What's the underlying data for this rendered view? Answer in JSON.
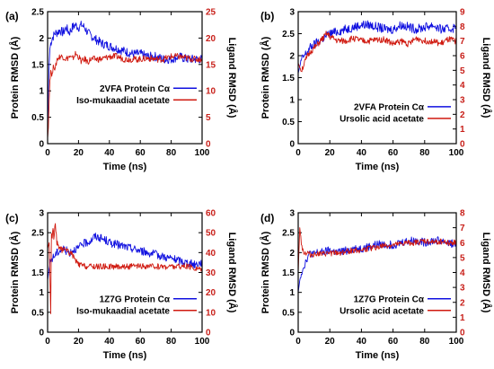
{
  "colors": {
    "protein": "#1010e0",
    "ligand": "#d01a10",
    "ligand_dark": "#8b2a10",
    "ligand_axis": "#c8201a"
  },
  "chart_data": [
    {
      "type": "line",
      "panel_label": "(a)",
      "xlabel": "Time (ns)",
      "ylabel": "Protein RMSD (Å)",
      "y2label": "Ligand RMSD (Å)",
      "xlim": [
        0,
        100
      ],
      "ylim": [
        0,
        2.5
      ],
      "y2lim": [
        0,
        25
      ],
      "xticks": [
        "0",
        "20",
        "40",
        "60",
        "80",
        "100"
      ],
      "yticks": [
        "0",
        "0.5",
        "1",
        "1.5",
        "2",
        "2.5"
      ],
      "y2ticks": [
        "0",
        "5",
        "10",
        "15",
        "20",
        "25"
      ],
      "legend_position": "center-right",
      "series": [
        {
          "name": "2VFA Protein Cα",
          "axis": "left",
          "color": "#1010e0",
          "x": [
            0,
            0.5,
            1,
            1.5,
            2,
            3,
            4,
            5,
            6,
            8,
            10,
            12,
            14,
            16,
            18,
            20,
            22,
            24,
            26,
            28,
            30,
            35,
            40,
            45,
            50,
            55,
            60,
            65,
            70,
            75,
            80,
            85,
            90,
            95,
            100
          ],
          "y": [
            0.1,
            1.0,
            1.5,
            1.8,
            1.9,
            2.0,
            2.05,
            2.1,
            2.1,
            2.15,
            2.1,
            2.2,
            2.1,
            2.2,
            2.25,
            2.2,
            2.25,
            2.2,
            2.1,
            2.05,
            2.0,
            1.9,
            1.85,
            1.8,
            1.75,
            1.7,
            1.7,
            1.65,
            1.65,
            1.6,
            1.6,
            1.65,
            1.6,
            1.6,
            1.6
          ]
        },
        {
          "name": "Iso-mukaadial acetate",
          "axis": "right",
          "color": "#d01a10",
          "x": [
            0,
            0.5,
            1,
            1.5,
            2,
            3,
            4,
            5,
            6,
            8,
            10,
            12,
            14,
            16,
            18,
            20,
            22,
            24,
            26,
            28,
            30,
            35,
            40,
            45,
            50,
            55,
            60,
            65,
            70,
            75,
            80,
            85,
            90,
            95,
            100
          ],
          "y": [
            1,
            3,
            8,
            12,
            14,
            13,
            15,
            14,
            16,
            16.5,
            16.5,
            16,
            16.5,
            16,
            17,
            16.5,
            15.5,
            16,
            15.5,
            16,
            16,
            16,
            16.5,
            16.5,
            16,
            16,
            16,
            16.2,
            16,
            16,
            16.5,
            16.5,
            16.2,
            16,
            16
          ]
        }
      ]
    },
    {
      "type": "line",
      "panel_label": "(b)",
      "xlabel": "Time (ns)",
      "ylabel": "Protein RMSD (Å)",
      "y2label": "Ligand RMSD (Å)",
      "xlim": [
        0,
        100
      ],
      "ylim": [
        0,
        3
      ],
      "y2lim": [
        0,
        9
      ],
      "xticks": [
        "0",
        "20",
        "40",
        "60",
        "80",
        "100"
      ],
      "yticks": [
        "0",
        "0.5",
        "1",
        "1.5",
        "2",
        "2.5",
        "3"
      ],
      "y2ticks": [
        "0",
        "1",
        "2",
        "3",
        "4",
        "5",
        "6",
        "7",
        "8",
        "9"
      ],
      "legend_position": "bottom-right",
      "series": [
        {
          "name": "2VFA Protein Cα",
          "axis": "left",
          "color": "#1010e0",
          "x": [
            0,
            1,
            2,
            4,
            6,
            8,
            10,
            12,
            14,
            16,
            18,
            20,
            25,
            30,
            35,
            40,
            45,
            50,
            55,
            60,
            65,
            70,
            75,
            80,
            85,
            90,
            95,
            100
          ],
          "y": [
            1.6,
            1.75,
            1.9,
            2.0,
            2.1,
            2.2,
            2.25,
            2.3,
            2.35,
            2.4,
            2.45,
            2.5,
            2.55,
            2.6,
            2.65,
            2.7,
            2.7,
            2.65,
            2.6,
            2.6,
            2.7,
            2.65,
            2.6,
            2.65,
            2.7,
            2.6,
            2.6,
            2.65
          ]
        },
        {
          "name": "Ursolic acid acetate",
          "axis": "right",
          "color": "#d01a10",
          "x": [
            0,
            1,
            2,
            4,
            6,
            8,
            10,
            12,
            14,
            16,
            18,
            20,
            25,
            30,
            35,
            40,
            45,
            50,
            55,
            60,
            65,
            70,
            75,
            80,
            85,
            90,
            95,
            100
          ],
          "y": [
            5.5,
            5.2,
            5.0,
            5.5,
            6.0,
            6.3,
            6.5,
            6.7,
            7.0,
            7.2,
            7.5,
            7.3,
            7.0,
            7.0,
            7.2,
            7.0,
            7.0,
            7.1,
            7.1,
            6.8,
            7.0,
            6.8,
            7.2,
            7.0,
            7.0,
            6.8,
            7.1,
            7.0
          ]
        }
      ]
    },
    {
      "type": "line",
      "panel_label": "(c)",
      "xlabel": "Time (ns)",
      "ylabel": "Protein RMSD (Å)",
      "y2label": "Ligand RMSD (Å)",
      "xlim": [
        0,
        100
      ],
      "ylim": [
        0,
        3
      ],
      "y2lim": [
        0,
        60
      ],
      "xticks": [
        "0",
        "20",
        "40",
        "60",
        "80",
        "100"
      ],
      "yticks": [
        "0",
        "0.5",
        "1",
        "1.5",
        "2",
        "2.5",
        "3"
      ],
      "y2ticks": [
        "0",
        "10",
        "20",
        "30",
        "40",
        "50",
        "60"
      ],
      "legend_position": "bottom-right",
      "series": [
        {
          "name": "1Z7G Protein Cα",
          "axis": "left",
          "color": "#1010e0",
          "x": [
            0,
            1,
            2,
            4,
            6,
            8,
            10,
            12,
            14,
            16,
            18,
            20,
            22,
            25,
            28,
            30,
            32,
            35,
            38,
            40,
            45,
            50,
            55,
            60,
            65,
            70,
            75,
            80,
            85,
            90,
            95,
            100
          ],
          "y": [
            1.3,
            1.6,
            1.8,
            1.9,
            2.0,
            2.05,
            2.1,
            2.05,
            2.0,
            2.05,
            2.1,
            2.1,
            2.2,
            2.25,
            2.3,
            2.4,
            2.4,
            2.35,
            2.3,
            2.25,
            2.2,
            2.15,
            2.1,
            2.05,
            2.0,
            1.95,
            1.9,
            1.85,
            1.8,
            1.75,
            1.7,
            1.75
          ]
        },
        {
          "name": "Iso-mukaadial acetate",
          "axis": "right",
          "color": "#d01a10",
          "x": [
            0,
            1,
            1.5,
            2,
            2.5,
            3,
            3.5,
            4,
            5,
            6,
            8,
            10,
            12,
            14,
            16,
            18,
            20,
            25,
            30,
            40,
            50,
            60,
            70,
            80,
            90,
            95,
            100
          ],
          "y": [
            42,
            45,
            28,
            10,
            50,
            48,
            52,
            48,
            54,
            45,
            42,
            41,
            42,
            40,
            39,
            36,
            34,
            33,
            33,
            33,
            33,
            33,
            33,
            33,
            33,
            32,
            32
          ]
        }
      ]
    },
    {
      "type": "line",
      "panel_label": "(d)",
      "xlabel": "Time (ns)",
      "ylabel": "Protein RMSD (Å)",
      "y2label": "Ligand RMSD (Å)",
      "xlim": [
        0,
        100
      ],
      "ylim": [
        0,
        3
      ],
      "y2lim": [
        0,
        8
      ],
      "xticks": [
        "0",
        "20",
        "40",
        "60",
        "80",
        "100"
      ],
      "yticks": [
        "0",
        "0.5",
        "1",
        "1.5",
        "2",
        "2.5",
        "3"
      ],
      "y2ticks": [
        "0",
        "1",
        "2",
        "3",
        "4",
        "5",
        "6",
        "7",
        "8"
      ],
      "legend_position": "bottom-right",
      "series": [
        {
          "name": "1Z7G Protein Cα",
          "axis": "left",
          "color": "#1010e0",
          "x": [
            0,
            1,
            2,
            3,
            4,
            6,
            8,
            10,
            12,
            15,
            20,
            25,
            30,
            35,
            40,
            45,
            50,
            55,
            60,
            65,
            70,
            75,
            80,
            85,
            90,
            95,
            100
          ],
          "y": [
            1.0,
            1.3,
            1.5,
            1.6,
            1.7,
            1.9,
            2.0,
            1.95,
            2.0,
            2.0,
            2.05,
            2.0,
            2.05,
            2.1,
            2.1,
            2.15,
            2.2,
            2.2,
            2.2,
            2.25,
            2.3,
            2.3,
            2.25,
            2.3,
            2.3,
            2.25,
            2.2
          ]
        },
        {
          "name": "Ursolic acid acetate",
          "axis": "right",
          "color": "#d01a10",
          "x": [
            0,
            1,
            2,
            3,
            4,
            6,
            8,
            10,
            12,
            15,
            20,
            25,
            30,
            35,
            40,
            45,
            50,
            55,
            60,
            65,
            70,
            75,
            80,
            85,
            90,
            95,
            100
          ],
          "y": [
            4.0,
            7.0,
            6.0,
            5.5,
            5.3,
            5.3,
            5.2,
            5.2,
            5.3,
            5.2,
            5.3,
            5.3,
            5.4,
            5.5,
            5.5,
            5.6,
            5.7,
            5.8,
            5.8,
            5.9,
            6.0,
            6.0,
            6.1,
            6.0,
            6.1,
            6.0,
            6.0
          ]
        }
      ]
    }
  ]
}
